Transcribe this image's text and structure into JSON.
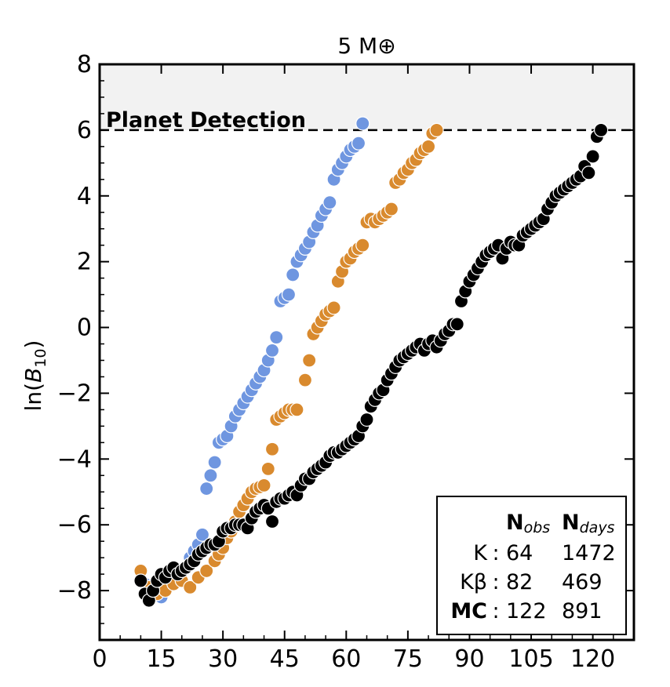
{
  "chart_data": {
    "type": "scatter",
    "title": "5 M⊕",
    "xlabel": "",
    "ylabel": "ln(B10)",
    "xlim": [
      0,
      130
    ],
    "ylim": [
      -9.5,
      8
    ],
    "xticks": [
      0,
      15,
      30,
      45,
      60,
      75,
      90,
      105,
      120
    ],
    "yticks": [
      -8,
      -6,
      -4,
      -2,
      0,
      2,
      4,
      6,
      8
    ],
    "xtick_labels": [
      "0",
      "15",
      "30",
      "45",
      "60",
      "75",
      "90",
      "105",
      "120"
    ],
    "ytick_labels": [
      "−8",
      "−6",
      "−4",
      "−2",
      "0",
      "2",
      "4",
      "6",
      "8"
    ],
    "threshold": {
      "y": 6,
      "label": "Planet Detection"
    },
    "legend": {
      "placement": "lower-right",
      "header": [
        "N_obs",
        "N_days"
      ],
      "rows": [
        {
          "name": "K",
          "n_obs": "64",
          "n_days": "1472"
        },
        {
          "name": "Kβ",
          "n_obs": "82",
          "n_days": "469"
        },
        {
          "name": "MC",
          "n_obs": "122",
          "n_days": "891"
        }
      ]
    },
    "series": [
      {
        "name": "K",
        "color": "#6f96e0",
        "points": [
          [
            10,
            -7.4
          ],
          [
            11,
            -7.8
          ],
          [
            12,
            -8.0
          ],
          [
            13,
            -8.1
          ],
          [
            14,
            -8.1
          ],
          [
            15,
            -8.2
          ],
          [
            16,
            -7.8
          ],
          [
            17,
            -7.7
          ],
          [
            18,
            -7.5
          ],
          [
            19,
            -7.6
          ],
          [
            20,
            -7.4
          ],
          [
            21,
            -7.3
          ],
          [
            22,
            -7.0
          ],
          [
            23,
            -6.8
          ],
          [
            24,
            -6.6
          ],
          [
            25,
            -6.3
          ],
          [
            26,
            -4.9
          ],
          [
            27,
            -4.5
          ],
          [
            28,
            -4.1
          ],
          [
            29,
            -3.5
          ],
          [
            30,
            -3.4
          ],
          [
            31,
            -3.3
          ],
          [
            32,
            -3.0
          ],
          [
            33,
            -2.7
          ],
          [
            34,
            -2.5
          ],
          [
            35,
            -2.3
          ],
          [
            36,
            -2.1
          ],
          [
            37,
            -1.9
          ],
          [
            38,
            -1.7
          ],
          [
            39,
            -1.5
          ],
          [
            40,
            -1.3
          ],
          [
            41,
            -1.0
          ],
          [
            42,
            -0.7
          ],
          [
            43,
            -0.3
          ],
          [
            44,
            0.8
          ],
          [
            45,
            0.9
          ],
          [
            46,
            1.0
          ],
          [
            47,
            1.6
          ],
          [
            48,
            2.0
          ],
          [
            49,
            2.2
          ],
          [
            50,
            2.4
          ],
          [
            51,
            2.6
          ],
          [
            52,
            2.9
          ],
          [
            53,
            3.1
          ],
          [
            54,
            3.4
          ],
          [
            55,
            3.6
          ],
          [
            56,
            3.8
          ],
          [
            57,
            4.5
          ],
          [
            58,
            4.8
          ],
          [
            59,
            5.0
          ],
          [
            60,
            5.2
          ],
          [
            61,
            5.4
          ],
          [
            62,
            5.5
          ],
          [
            63,
            5.6
          ],
          [
            64,
            6.2
          ]
        ]
      },
      {
        "name": "Kβ",
        "color": "#d98a2e",
        "points": [
          [
            10,
            -7.4
          ],
          [
            12,
            -7.9
          ],
          [
            14,
            -8.1
          ],
          [
            16,
            -8.0
          ],
          [
            18,
            -7.8
          ],
          [
            20,
            -7.7
          ],
          [
            22,
            -7.9
          ],
          [
            24,
            -7.6
          ],
          [
            26,
            -7.4
          ],
          [
            28,
            -7.1
          ],
          [
            29,
            -6.9
          ],
          [
            30,
            -6.7
          ],
          [
            31,
            -6.4
          ],
          [
            32,
            -6.2
          ],
          [
            33,
            -5.9
          ],
          [
            34,
            -5.6
          ],
          [
            35,
            -5.4
          ],
          [
            36,
            -5.2
          ],
          [
            37,
            -5.0
          ],
          [
            38,
            -4.9
          ],
          [
            39,
            -4.85
          ],
          [
            40,
            -4.8
          ],
          [
            41,
            -4.3
          ],
          [
            42,
            -3.7
          ],
          [
            43,
            -2.8
          ],
          [
            44,
            -2.7
          ],
          [
            45,
            -2.6
          ],
          [
            46,
            -2.5
          ],
          [
            47,
            -2.5
          ],
          [
            48,
            -2.5
          ],
          [
            50,
            -1.6
          ],
          [
            51,
            -1.0
          ],
          [
            52,
            -0.2
          ],
          [
            53,
            0.0
          ],
          [
            54,
            0.2
          ],
          [
            55,
            0.4
          ],
          [
            56,
            0.5
          ],
          [
            57,
            0.6
          ],
          [
            58,
            1.4
          ],
          [
            59,
            1.7
          ],
          [
            60,
            2.0
          ],
          [
            61,
            2.1
          ],
          [
            62,
            2.3
          ],
          [
            63,
            2.4
          ],
          [
            64,
            2.5
          ],
          [
            65,
            3.2
          ],
          [
            66,
            3.3
          ],
          [
            67,
            3.2
          ],
          [
            68,
            3.3
          ],
          [
            69,
            3.4
          ],
          [
            70,
            3.5
          ],
          [
            71,
            3.6
          ],
          [
            72,
            4.4
          ],
          [
            73,
            4.5
          ],
          [
            74,
            4.7
          ],
          [
            75,
            4.8
          ],
          [
            76,
            5.0
          ],
          [
            77,
            5.1
          ],
          [
            78,
            5.3
          ],
          [
            79,
            5.4
          ],
          [
            80,
            5.5
          ],
          [
            81,
            5.9
          ],
          [
            82,
            6.0
          ]
        ]
      },
      {
        "name": "MC",
        "color": "#000000",
        "points": [
          [
            10,
            -7.7
          ],
          [
            11,
            -8.1
          ],
          [
            12,
            -8.3
          ],
          [
            13,
            -8.0
          ],
          [
            14,
            -7.7
          ],
          [
            15,
            -7.5
          ],
          [
            16,
            -7.6
          ],
          [
            17,
            -7.4
          ],
          [
            18,
            -7.3
          ],
          [
            19,
            -7.5
          ],
          [
            20,
            -7.4
          ],
          [
            21,
            -7.3
          ],
          [
            22,
            -7.2
          ],
          [
            23,
            -7.1
          ],
          [
            24,
            -6.9
          ],
          [
            25,
            -6.8
          ],
          [
            26,
            -6.7
          ],
          [
            27,
            -6.6
          ],
          [
            28,
            -6.6
          ],
          [
            29,
            -6.5
          ],
          [
            30,
            -6.2
          ],
          [
            31,
            -6.1
          ],
          [
            32,
            -6.1
          ],
          [
            33,
            -6.0
          ],
          [
            34,
            -6.0
          ],
          [
            35,
            -6.0
          ],
          [
            36,
            -6.1
          ],
          [
            37,
            -5.8
          ],
          [
            38,
            -5.6
          ],
          [
            39,
            -5.5
          ],
          [
            40,
            -5.4
          ],
          [
            41,
            -5.5
          ],
          [
            42,
            -5.9
          ],
          [
            43,
            -5.3
          ],
          [
            44,
            -5.2
          ],
          [
            45,
            -5.2
          ],
          [
            46,
            -5.1
          ],
          [
            47,
            -5.0
          ],
          [
            48,
            -5.1
          ],
          [
            49,
            -4.8
          ],
          [
            50,
            -4.6
          ],
          [
            51,
            -4.6
          ],
          [
            52,
            -4.4
          ],
          [
            53,
            -4.3
          ],
          [
            54,
            -4.2
          ],
          [
            55,
            -4.1
          ],
          [
            56,
            -3.9
          ],
          [
            57,
            -3.8
          ],
          [
            58,
            -3.8
          ],
          [
            59,
            -3.7
          ],
          [
            60,
            -3.6
          ],
          [
            61,
            -3.5
          ],
          [
            62,
            -3.4
          ],
          [
            63,
            -3.3
          ],
          [
            64,
            -3.0
          ],
          [
            65,
            -2.8
          ],
          [
            66,
            -2.4
          ],
          [
            67,
            -2.2
          ],
          [
            68,
            -2.0
          ],
          [
            69,
            -1.9
          ],
          [
            70,
            -1.6
          ],
          [
            71,
            -1.4
          ],
          [
            72,
            -1.2
          ],
          [
            73,
            -1.0
          ],
          [
            74,
            -0.9
          ],
          [
            75,
            -0.8
          ],
          [
            76,
            -0.7
          ],
          [
            77,
            -0.6
          ],
          [
            78,
            -0.5
          ],
          [
            79,
            -0.7
          ],
          [
            80,
            -0.5
          ],
          [
            81,
            -0.4
          ],
          [
            82,
            -0.6
          ],
          [
            83,
            -0.4
          ],
          [
            84,
            -0.2
          ],
          [
            85,
            -0.1
          ],
          [
            86,
            0.1
          ],
          [
            87,
            0.1
          ],
          [
            88,
            0.8
          ],
          [
            89,
            1.1
          ],
          [
            90,
            1.4
          ],
          [
            91,
            1.6
          ],
          [
            92,
            1.8
          ],
          [
            93,
            2.0
          ],
          [
            94,
            2.2
          ],
          [
            95,
            2.3
          ],
          [
            96,
            2.4
          ],
          [
            97,
            2.5
          ],
          [
            98,
            2.1
          ],
          [
            99,
            2.4
          ],
          [
            100,
            2.6
          ],
          [
            101,
            2.5
          ],
          [
            102,
            2.5
          ],
          [
            103,
            2.8
          ],
          [
            104,
            2.9
          ],
          [
            105,
            3.0
          ],
          [
            106,
            3.1
          ],
          [
            107,
            3.2
          ],
          [
            108,
            3.3
          ],
          [
            109,
            3.6
          ],
          [
            110,
            3.8
          ],
          [
            111,
            4.0
          ],
          [
            112,
            4.1
          ],
          [
            113,
            4.2
          ],
          [
            114,
            4.3
          ],
          [
            115,
            4.4
          ],
          [
            116,
            4.5
          ],
          [
            117,
            4.6
          ],
          [
            118,
            4.9
          ],
          [
            119,
            4.7
          ],
          [
            120,
            5.2
          ],
          [
            121,
            5.8
          ],
          [
            122,
            6.0
          ]
        ]
      }
    ]
  }
}
